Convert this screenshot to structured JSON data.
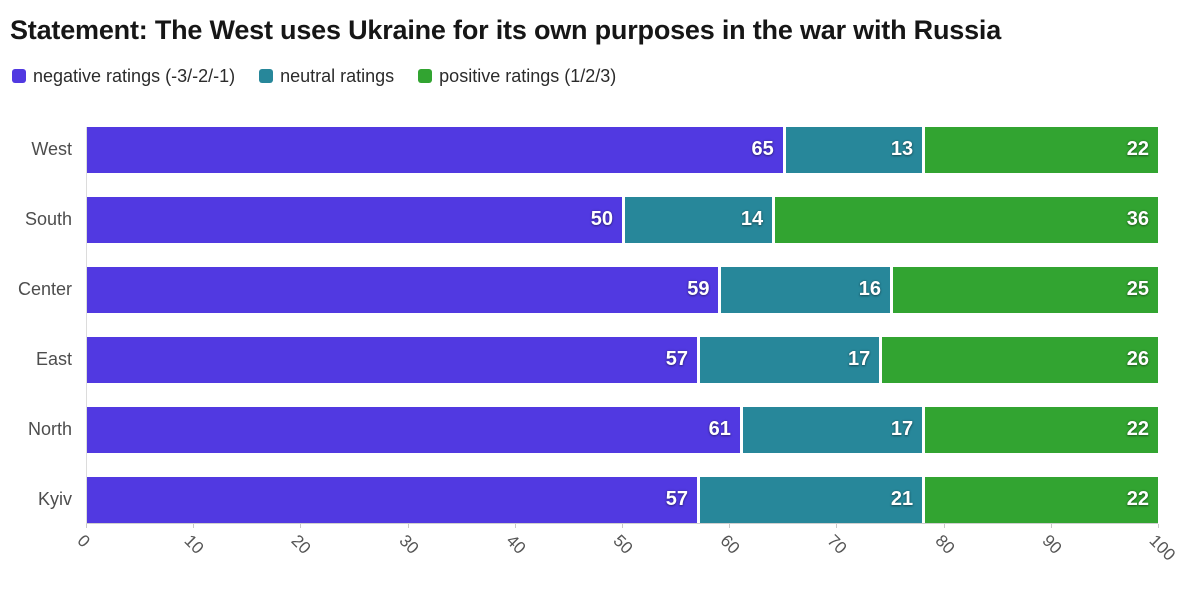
{
  "page": {
    "title": "Statement: The West uses Ukraine for its own purposes in the war with Russia"
  },
  "legend": {
    "items": [
      {
        "label": "negative ratings (-3/-2/-1)",
        "color": "#5139e1"
      },
      {
        "label": "neutral ratings",
        "color": "#27879a"
      },
      {
        "label": "positive ratings (1/2/3)",
        "color": "#32a431"
      }
    ]
  },
  "chart_data": {
    "type": "bar",
    "orientation": "horizontal",
    "stacked": true,
    "title": "Statement: The West uses Ukraine for its own purposes in the war with Russia",
    "categories": [
      "West",
      "South",
      "Center",
      "East",
      "North",
      "Kyiv"
    ],
    "series": [
      {
        "name": "negative ratings (-3/-2/-1)",
        "color": "#5139e1",
        "values": [
          65,
          50,
          59,
          57,
          61,
          57
        ]
      },
      {
        "name": "neutral ratings",
        "color": "#27879a",
        "values": [
          13,
          14,
          16,
          17,
          17,
          21
        ]
      },
      {
        "name": "positive ratings (1/2/3)",
        "color": "#32a431",
        "values": [
          22,
          36,
          25,
          26,
          22,
          22
        ]
      }
    ],
    "xlim": [
      0,
      100
    ],
    "x_ticks": [
      0,
      10,
      20,
      30,
      40,
      50,
      60,
      70,
      80,
      90,
      100
    ],
    "xlabel": "",
    "ylabel": "",
    "grid": false,
    "legend_position": "top",
    "value_labels": "inside-end"
  }
}
